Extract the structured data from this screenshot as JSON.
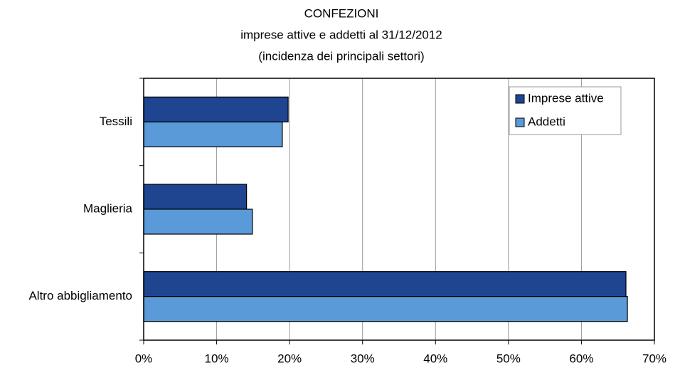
{
  "chart_data": {
    "type": "bar",
    "orientation": "horizontal",
    "title": "CONFEZIONI",
    "subtitle": [
      "imprese attive e addetti al 31/12/2012",
      "(incidenza dei principali settori)"
    ],
    "categories": [
      "Tessili",
      "Maglieria",
      "Altro abbigliamento"
    ],
    "series": [
      {
        "name": "Imprese attive",
        "color": "#1f4590",
        "values": [
          19.8,
          14.1,
          66.1
        ]
      },
      {
        "name": "Addetti",
        "color": "#5a9ad8",
        "values": [
          19.0,
          14.9,
          66.3
        ]
      }
    ],
    "xlim": [
      0,
      70
    ],
    "xticks": [
      {
        "value": 0,
        "label": "0%"
      },
      {
        "value": 10,
        "label": "10%"
      },
      {
        "value": 20,
        "label": "20%"
      },
      {
        "value": 30,
        "label": "30%"
      },
      {
        "value": 40,
        "label": "40%"
      },
      {
        "value": 50,
        "label": "50%"
      },
      {
        "value": 60,
        "label": "60%"
      },
      {
        "value": 70,
        "label": "70%"
      }
    ],
    "grid": true,
    "legend": "upper right"
  }
}
